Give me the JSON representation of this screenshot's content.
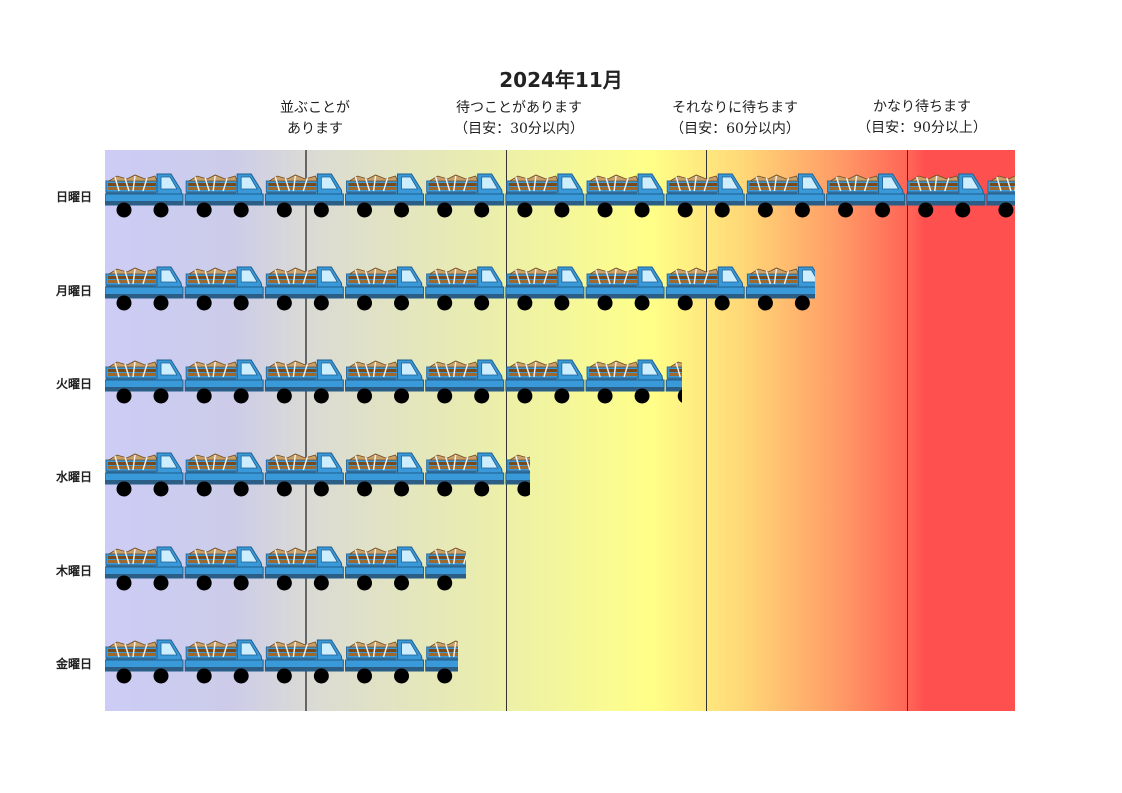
{
  "title": "2024年11月",
  "levels": [
    {
      "line1": "並ぶことが",
      "line2": "あります"
    },
    {
      "line1": "待つことがあります",
      "line2": "（目安：30分以内）"
    },
    {
      "line1": "それなりに待ちます",
      "line2": "（目安：60分以内）"
    },
    {
      "line1": "かなり待ちます",
      "line2": "（目安：90分以上）"
    }
  ],
  "chart_data": {
    "type": "bar",
    "orientation": "horizontal",
    "title": "2024年11月",
    "categories": [
      "日曜日",
      "月曜日",
      "火曜日",
      "水曜日",
      "木曜日",
      "金曜日"
    ],
    "values": [
      11.35,
      8.85,
      7.2,
      5.3,
      4.5,
      4.4
    ],
    "xlim": [
      0,
      11.35
    ],
    "threshold_lines": [
      2.5,
      5.0,
      7.5,
      10.0
    ],
    "icon": "truck-icon",
    "colors": {
      "low": "#ccccf6",
      "mid": "#ffff88",
      "high": "#ff5050",
      "truck": "#3a9ad9"
    }
  }
}
